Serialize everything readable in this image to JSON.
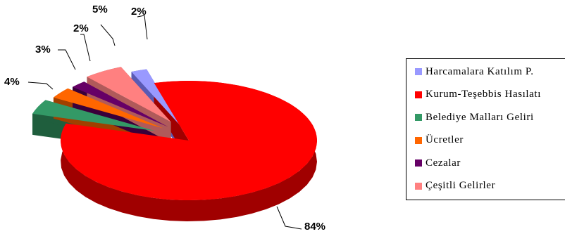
{
  "chart_data": {
    "type": "pie",
    "title": "",
    "legend_position": "right",
    "slices": [
      {
        "label": "Harcamalara Katılım P...",
        "value": 2,
        "display": "2%",
        "color": "#9999ff",
        "side": "#5a5ab4"
      },
      {
        "label": "Kurum-Teşebbüs Hasılatı",
        "value": 84,
        "display": "84%",
        "color": "#ff0000",
        "side": "#a00000"
      },
      {
        "label": "Belediye Malları Geliri",
        "value": 4,
        "display": "4%",
        "color": "#339966",
        "side": "#1f5e3d"
      },
      {
        "label": "Ücretler",
        "value": 3,
        "display": "3%",
        "color": "#ff6600",
        "side": "#a04000"
      },
      {
        "label": "Cezalar",
        "value": 2,
        "display": "2%",
        "color": "#660066",
        "side": "#3a003a"
      },
      {
        "label": "Çeşitli Gelirler",
        "value": 5,
        "display": "5%",
        "color": "#ff8080",
        "side": "#b05a5a"
      }
    ],
    "legend": [
      {
        "label": "Harcamalara Katılım P.",
        "color": "#9999ff"
      },
      {
        "label": "Kurum-Teşebbis Hasılatı",
        "color": "#ff0000"
      },
      {
        "label": "Belediye Malları Geliri",
        "color": "#339966"
      },
      {
        "label": "Ücretler",
        "color": "#ff6600"
      },
      {
        "label": "Cezalar",
        "color": "#660066"
      },
      {
        "label": "Çeşitli Gelirler",
        "color": "#ff8080"
      }
    ]
  }
}
